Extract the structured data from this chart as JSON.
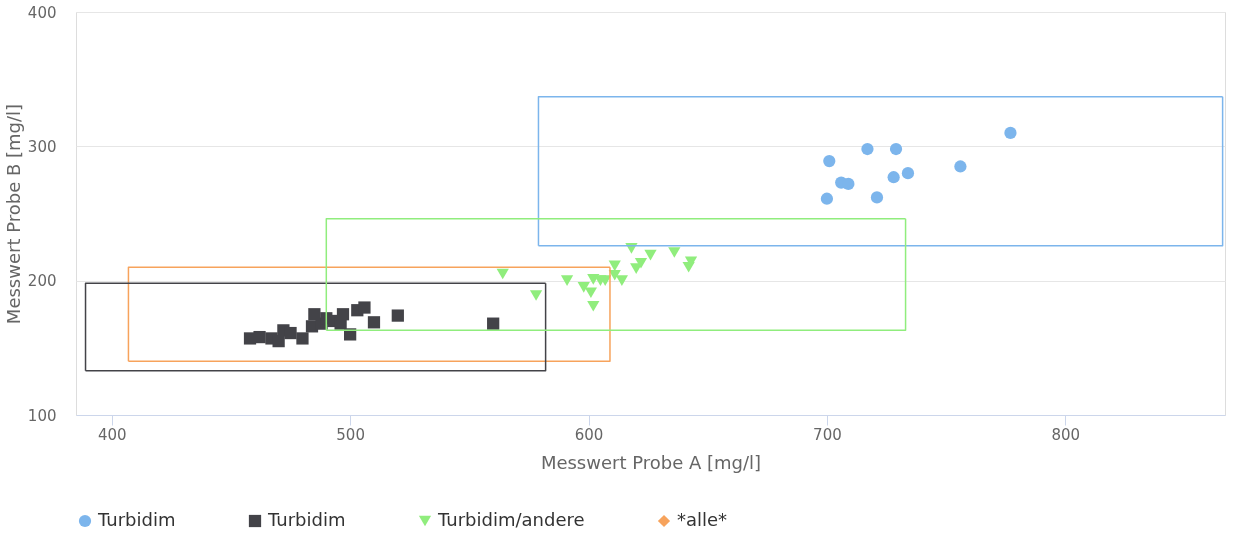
{
  "chart_data": {
    "type": "scatter",
    "xlabel": "Messwert Probe A [mg/l]",
    "ylabel": "Messwert Probe B [mg/l]",
    "xlim": [
      385,
      867
    ],
    "ylim": [
      100,
      400
    ],
    "xticks": [
      400,
      500,
      600,
      700,
      800
    ],
    "yticks": [
      100,
      200,
      300,
      400
    ],
    "grid": "y",
    "legend": "bottom",
    "series": [
      {
        "name": "Turbidim",
        "marker": "circle",
        "color": "#7cb5ec",
        "x": [
          701,
          700,
          706,
          709,
          717,
          729,
          721,
          728,
          734,
          756,
          777
        ],
        "values": [
          289,
          261,
          273,
          272,
          298,
          298,
          262,
          277,
          280,
          285,
          310
        ]
      },
      {
        "name": "Turbidim",
        "marker": "square",
        "color": "#434348",
        "x": [
          458,
          462,
          467,
          472,
          475,
          484,
          488,
          490,
          493,
          496,
          500,
          503,
          506,
          510,
          520,
          560,
          480,
          470,
          485,
          497
        ],
        "values": [
          157,
          158,
          157,
          163,
          161,
          166,
          168,
          172,
          170,
          168,
          160,
          178,
          180,
          169,
          174,
          168,
          157,
          155,
          175,
          175
        ]
      },
      {
        "name": "Turbidim/andere",
        "marker": "triangle",
        "color": "#90ed7d",
        "x": [
          564,
          578,
          591,
          598,
          601,
          602,
          602,
          605,
          607,
          611,
          611,
          614,
          618,
          620,
          622,
          626,
          636,
          643,
          642
        ],
        "values": [
          205,
          189,
          200,
          195,
          191,
          181,
          201,
          200,
          200,
          204,
          211,
          200,
          224,
          209,
          213,
          219,
          221,
          214,
          210
        ]
      },
      {
        "name": "*alle*",
        "type": "line",
        "marker": "none",
        "color": "#f7a35c",
        "x": [
          407,
          407,
          609
        ],
        "values": [
          140,
          210,
          210
        ]
      },
      {
        "type": "line",
        "marker": "none",
        "color": "#f7a35c",
        "x": [
          407,
          609,
          609
        ],
        "values": [
          140,
          140,
          210
        ]
      },
      {
        "type": "line",
        "marker": "none",
        "color": "#7cb5ec",
        "x": [
          579,
          579,
          866
        ],
        "values": [
          226,
          337,
          337
        ]
      },
      {
        "type": "line",
        "marker": "none",
        "color": "#7cb5ec",
        "x": [
          579,
          866,
          866
        ],
        "values": [
          226,
          226,
          337
        ]
      },
      {
        "type": "line",
        "marker": "none",
        "color": "#434348",
        "x": [
          389,
          389,
          582
        ],
        "values": [
          133,
          198,
          198
        ]
      },
      {
        "type": "line",
        "marker": "none",
        "color": "#434348",
        "x": [
          389,
          582,
          582
        ],
        "values": [
          133,
          133,
          198
        ]
      },
      {
        "type": "line",
        "marker": "none",
        "color": "#90ed7d",
        "x": [
          490,
          490,
          733
        ],
        "values": [
          163,
          246,
          246
        ]
      },
      {
        "type": "line",
        "marker": "none",
        "color": "#90ed7d",
        "x": [
          490,
          733,
          733
        ],
        "values": [
          163,
          163,
          246
        ]
      }
    ]
  }
}
